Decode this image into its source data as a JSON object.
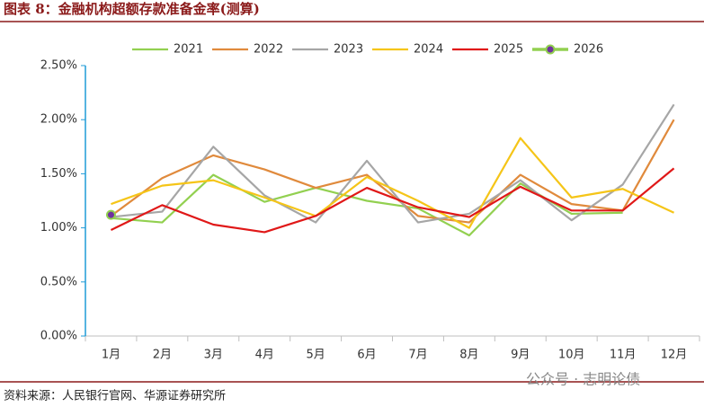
{
  "chart_data": {
    "type": "line",
    "title": "图表 8：金融机构超额存款准备金率(测算)",
    "source": "资料来源：人民银行官网、华源证券研究所",
    "watermark": "公众号 · 志明论债",
    "categories": [
      "1月",
      "2月",
      "3月",
      "4月",
      "5月",
      "6月",
      "7月",
      "8月",
      "9月",
      "10月",
      "11月",
      "12月"
    ],
    "ylim": [
      0,
      2.5
    ],
    "yticks": [
      {
        "value": 0,
        "label": "0.00%"
      },
      {
        "value": 0.5,
        "label": "0.50%"
      },
      {
        "value": 1,
        "label": "1.00%"
      },
      {
        "value": 1.5,
        "label": "1.50%"
      },
      {
        "value": 2,
        "label": "2.00%"
      },
      {
        "value": 2.5,
        "label": "2.50%"
      }
    ],
    "axis_color": "#1f9bd7",
    "series": [
      {
        "name": "2021",
        "color": "#92d050",
        "values": [
          1.09,
          1.05,
          1.49,
          1.24,
          1.37,
          1.25,
          1.18,
          0.93,
          1.41,
          1.13,
          1.14,
          null
        ]
      },
      {
        "name": "2022",
        "color": "#e08a3c",
        "values": [
          1.11,
          1.46,
          1.67,
          1.54,
          1.37,
          1.49,
          1.11,
          1.05,
          1.49,
          1.22,
          1.16,
          2.0
        ]
      },
      {
        "name": "2023",
        "color": "#a6a6a6",
        "values": [
          1.1,
          1.15,
          1.75,
          1.3,
          1.05,
          1.62,
          1.05,
          1.13,
          1.44,
          1.07,
          1.4,
          2.14
        ]
      },
      {
        "name": "2024",
        "color": "#f5c518",
        "values": [
          1.22,
          1.39,
          1.44,
          1.28,
          1.11,
          1.47,
          1.25,
          1.0,
          1.83,
          1.28,
          1.36,
          1.14
        ]
      },
      {
        "name": "2025",
        "color": "#e01818",
        "values": [
          0.98,
          1.21,
          1.03,
          0.96,
          1.11,
          1.37,
          1.19,
          1.1,
          1.38,
          1.16,
          1.16,
          1.55
        ]
      },
      {
        "name": "2026",
        "color": "#92d050",
        "marker_color": "#7030a0",
        "values": [
          1.12,
          null,
          null,
          null,
          null,
          null,
          null,
          null,
          null,
          null,
          null,
          null
        ]
      }
    ]
  }
}
